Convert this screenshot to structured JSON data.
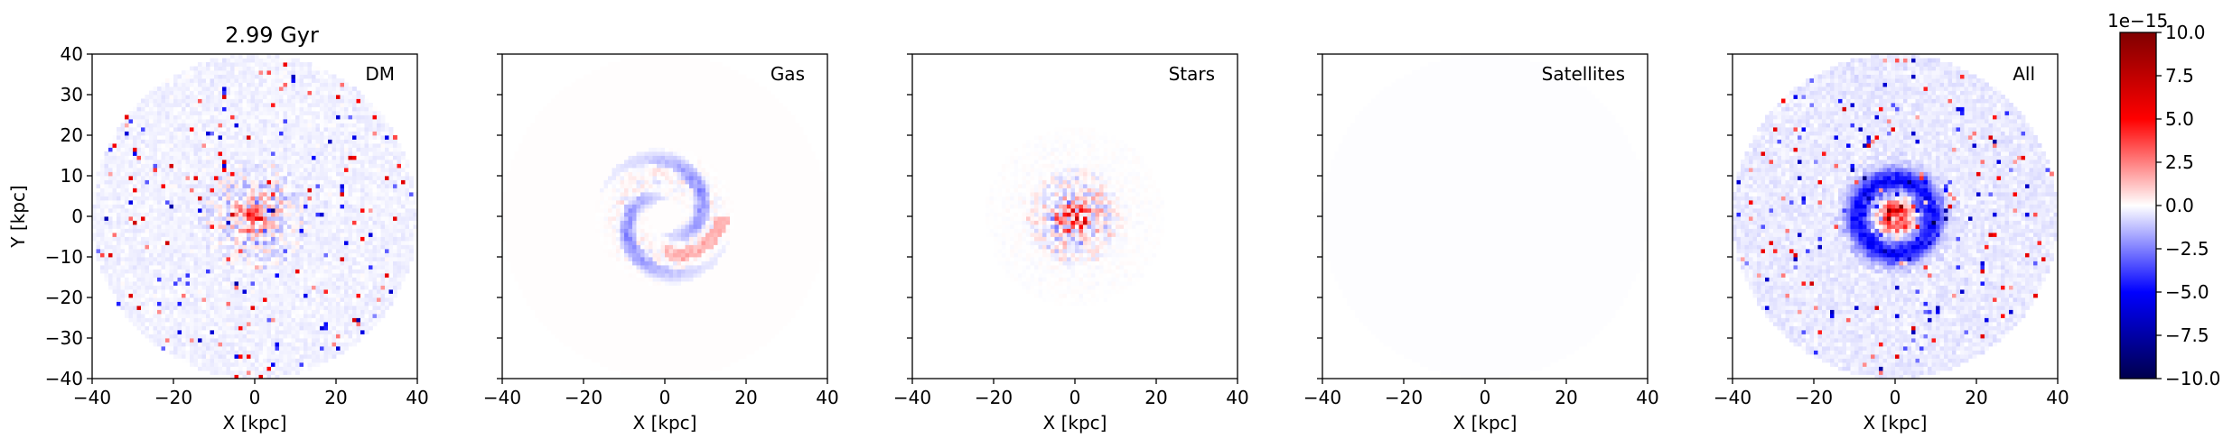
{
  "figure": {
    "time_label": "2.99 Gyr"
  },
  "chart_data": [
    {
      "type": "heatmap",
      "panel_label": "DM",
      "xlabel": "X [kpc]",
      "ylabel": "Y [kpc]",
      "xlim": [
        -40,
        40
      ],
      "ylim": [
        -40,
        40
      ],
      "xticks": [
        -40,
        -20,
        0,
        20,
        40
      ],
      "yticks": [
        -40,
        -30,
        -20,
        -10,
        0,
        10,
        20,
        30,
        40
      ],
      "xtick_labels": [
        "−40",
        "−20",
        "0",
        "20",
        "40"
      ],
      "ytick_labels": [
        "−40",
        "−30",
        "−20",
        "−10",
        "0",
        "10",
        "20",
        "30",
        "40"
      ],
      "disc_radius_kpc": 40,
      "grid": false,
      "pattern": "faint blue background across the disc, scattered red and blue noise pixels, strong mixed red/blue concentration within ~10 kpc of center"
    },
    {
      "type": "heatmap",
      "panel_label": "Gas",
      "xlabel": "X [kpc]",
      "xlim": [
        -40,
        40
      ],
      "ylim": [
        -40,
        40
      ],
      "xticks": [
        -40,
        -20,
        0,
        20,
        40
      ],
      "xtick_labels": [
        "−40",
        "−20",
        "0",
        "20",
        "40"
      ],
      "disc_radius_kpc": 40,
      "grid": false,
      "pattern": "nearly zero background; blue/white spiral-ring structure between ~5 and ~15 kpc, red streak toward the lower right"
    },
    {
      "type": "heatmap",
      "panel_label": "Stars",
      "xlabel": "X [kpc]",
      "xlim": [
        -40,
        40
      ],
      "ylim": [
        -40,
        40
      ],
      "xticks": [
        -40,
        -20,
        0,
        20,
        40
      ],
      "xtick_labels": [
        "−40",
        "−20",
        "0",
        "20",
        "40"
      ],
      "disc_radius_kpc": 40,
      "grid": false,
      "pattern": "near zero outside ~20 kpc; dense mixed red/blue pixels concentrated within ~10 kpc, dark red core"
    },
    {
      "type": "heatmap",
      "panel_label": "Satellites",
      "xlabel": "X [kpc]",
      "xlim": [
        -40,
        40
      ],
      "ylim": [
        -40,
        40
      ],
      "xticks": [
        -40,
        -20,
        0,
        20,
        40
      ],
      "xtick_labels": [
        "−40",
        "−20",
        "0",
        "20",
        "40"
      ],
      "disc_radius_kpc": 40,
      "grid": false,
      "pattern": "essentially zero everywhere (very faint off-white disc)"
    },
    {
      "type": "heatmap",
      "panel_label": "All",
      "xlabel": "X [kpc]",
      "xlim": [
        -40,
        40
      ],
      "ylim": [
        -40,
        40
      ],
      "xticks": [
        -40,
        -20,
        0,
        20,
        40
      ],
      "xtick_labels": [
        "−40",
        "−20",
        "0",
        "20",
        "40"
      ],
      "disc_radius_kpc": 40,
      "grid": false,
      "pattern": "sum of components: faint blue disc with scattered noise, strong red center surrounded by a blue ring at ~8-12 kpc"
    }
  ],
  "colorbar": {
    "colormap": "seismic",
    "vmin": -10.0,
    "vmax": 10.0,
    "ticks": [
      -10.0,
      -7.5,
      -5.0,
      -2.5,
      0.0,
      2.5,
      5.0,
      7.5,
      10.0
    ],
    "tick_labels": [
      "−10.0",
      "−7.5",
      "−5.0",
      "−2.5",
      "0.0",
      "2.5",
      "5.0",
      "7.5",
      "10.0"
    ],
    "offset_text": "1e−15",
    "colors": {
      "min": "#00004c",
      "low": "#0000ff",
      "zero": "#ffffff",
      "high": "#ff0000",
      "max": "#800000"
    }
  }
}
